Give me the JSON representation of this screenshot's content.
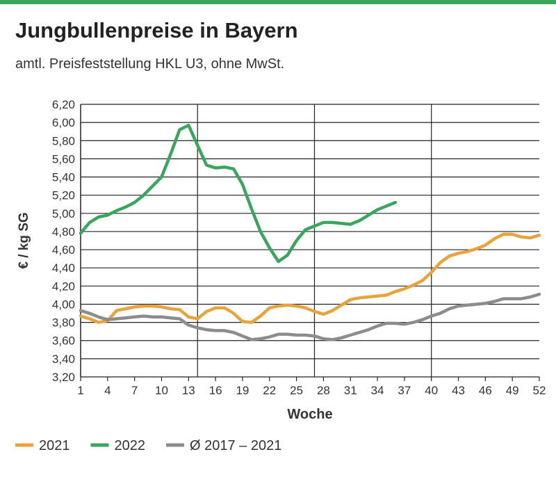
{
  "chart_data": {
    "type": "line",
    "title": "Jungbullenpreise in Bayern",
    "subtitle": "amtl. Preisfeststellung HKL U3, ohne MwSt.",
    "xlabel": "Woche",
    "ylabel": "€ / kg SG",
    "x": [
      1,
      2,
      3,
      4,
      5,
      6,
      7,
      8,
      9,
      10,
      11,
      12,
      13,
      14,
      15,
      16,
      17,
      18,
      19,
      20,
      21,
      22,
      23,
      24,
      25,
      26,
      27,
      28,
      29,
      30,
      31,
      32,
      33,
      34,
      35,
      36,
      37,
      38,
      39,
      40,
      41,
      42,
      43,
      44,
      45,
      46,
      47,
      48,
      49,
      50,
      51,
      52
    ],
    "xlim": [
      1,
      52
    ],
    "xticks": [
      1,
      4,
      7,
      10,
      13,
      16,
      19,
      22,
      25,
      28,
      31,
      34,
      37,
      40,
      43,
      46,
      49,
      52
    ],
    "xgrid": [
      14,
      27,
      40
    ],
    "ylim": [
      3.2,
      6.2
    ],
    "yticks": [
      {
        "value": 3.2,
        "label": "3,20"
      },
      {
        "value": 3.4,
        "label": "3,40"
      },
      {
        "value": 3.6,
        "label": "3,60"
      },
      {
        "value": 3.8,
        "label": "3,80"
      },
      {
        "value": 4.0,
        "label": "4,00"
      },
      {
        "value": 4.2,
        "label": "4,20"
      },
      {
        "value": 4.4,
        "label": "4,40"
      },
      {
        "value": 4.6,
        "label": "4,60"
      },
      {
        "value": 4.8,
        "label": "4,80"
      },
      {
        "value": 5.0,
        "label": "5,00"
      },
      {
        "value": 5.2,
        "label": "5,20"
      },
      {
        "value": 5.4,
        "label": "5,40"
      },
      {
        "value": 5.6,
        "label": "5,60"
      },
      {
        "value": 5.8,
        "label": "5,80"
      },
      {
        "value": 6.0,
        "label": "6,00"
      },
      {
        "value": 6.2,
        "label": "6,20"
      }
    ],
    "grid": true,
    "legend": "bottom",
    "series": [
      {
        "name": "2021",
        "color": "#e8a33d",
        "values": [
          3.87,
          3.84,
          3.8,
          3.82,
          3.93,
          3.95,
          3.97,
          3.98,
          3.98,
          3.97,
          3.95,
          3.94,
          3.86,
          3.84,
          3.92,
          3.96,
          3.96,
          3.9,
          3.81,
          3.8,
          3.87,
          3.96,
          3.98,
          3.99,
          3.98,
          3.96,
          3.92,
          3.89,
          3.93,
          3.99,
          4.05,
          4.07,
          4.08,
          4.09,
          4.1,
          4.14,
          4.17,
          4.21,
          4.26,
          4.35,
          4.46,
          4.53,
          4.56,
          4.58,
          4.61,
          4.65,
          4.72,
          4.77,
          4.77,
          4.74,
          4.73,
          4.76
        ]
      },
      {
        "name": "2022",
        "color": "#3aa55c",
        "values": [
          4.78,
          4.9,
          4.96,
          4.98,
          5.03,
          5.07,
          5.12,
          5.2,
          5.3,
          5.4,
          5.65,
          5.92,
          5.97,
          5.75,
          5.53,
          5.5,
          5.51,
          5.49,
          5.32,
          5.05,
          4.8,
          4.62,
          4.47,
          4.54,
          4.7,
          4.82,
          4.86,
          4.9,
          4.9,
          4.89,
          4.88,
          4.92,
          4.98,
          5.04,
          5.08,
          5.12,
          null,
          null,
          null,
          null,
          null,
          null,
          null,
          null,
          null,
          null,
          null,
          null,
          null,
          null,
          null,
          null
        ]
      },
      {
        "name": "Ø 2017 – 2021",
        "color": "#8c8c8c",
        "values": [
          3.93,
          3.9,
          3.86,
          3.83,
          3.84,
          3.85,
          3.86,
          3.87,
          3.86,
          3.86,
          3.85,
          3.84,
          3.77,
          3.74,
          3.72,
          3.71,
          3.71,
          3.69,
          3.65,
          3.61,
          3.62,
          3.64,
          3.67,
          3.67,
          3.66,
          3.66,
          3.65,
          3.62,
          3.61,
          3.63,
          3.66,
          3.69,
          3.72,
          3.76,
          3.79,
          3.79,
          3.78,
          3.8,
          3.83,
          3.87,
          3.9,
          3.95,
          3.98,
          3.99,
          4.0,
          4.01,
          4.03,
          4.06,
          4.06,
          4.06,
          4.08,
          4.11
        ]
      }
    ]
  }
}
